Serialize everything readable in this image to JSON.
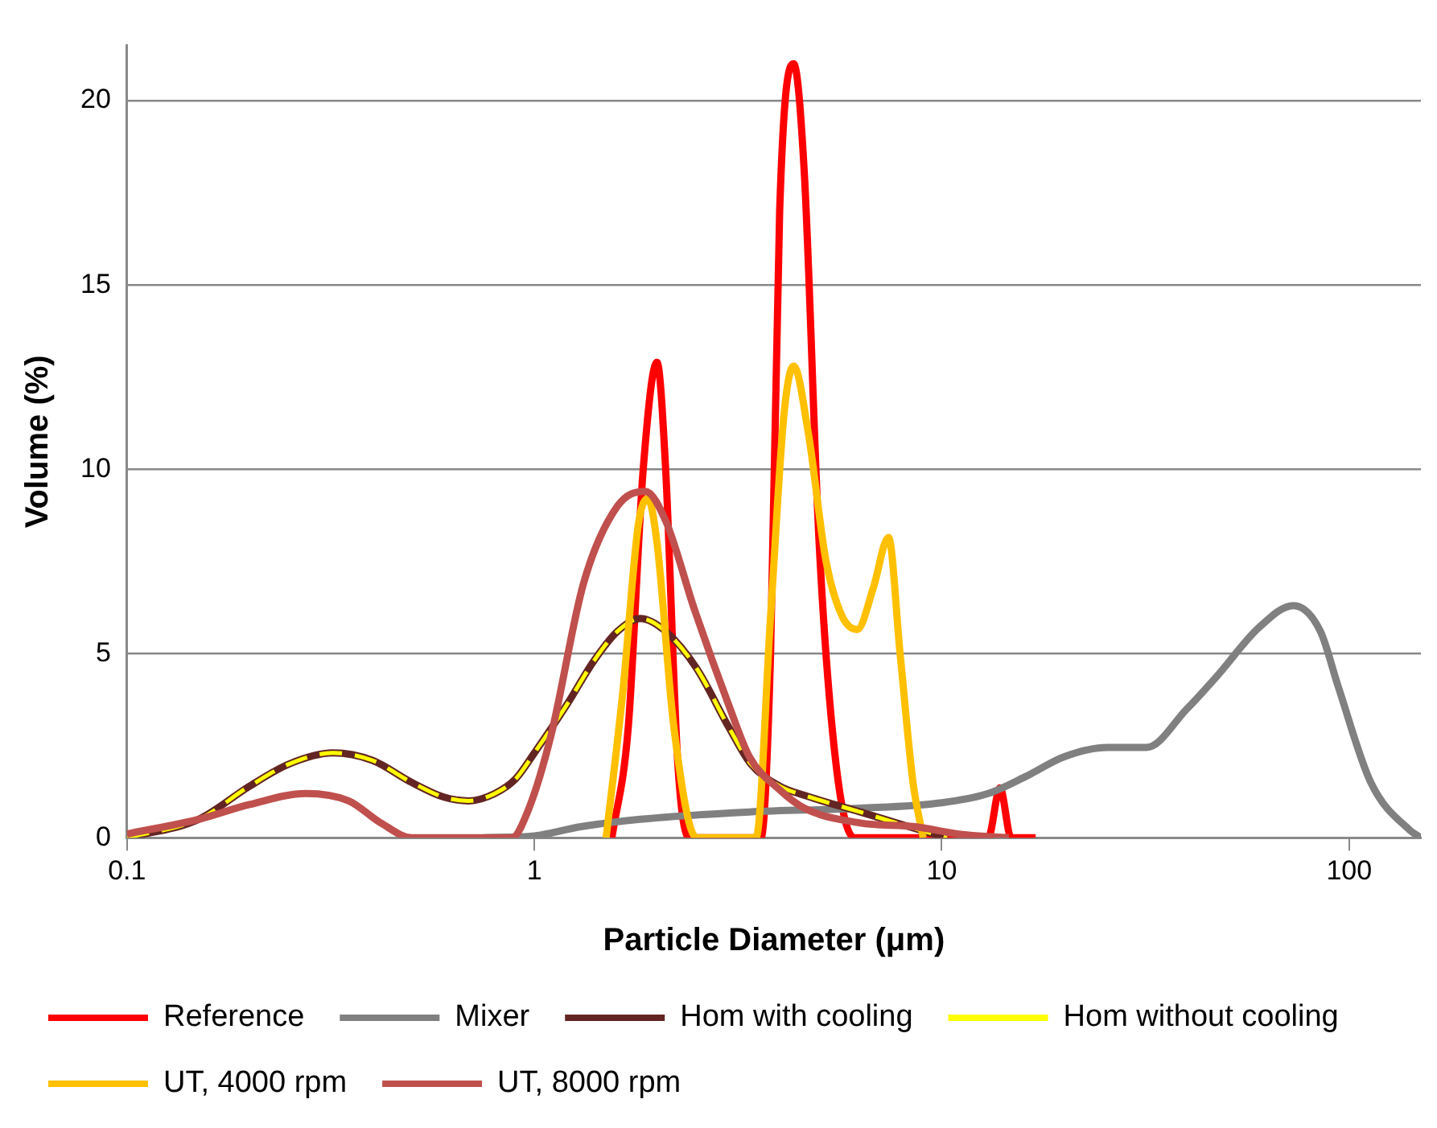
{
  "chart_data": {
    "type": "line",
    "xlabel": "Particle Diameter (μm)",
    "ylabel": "Volume (%)",
    "log": "x",
    "xlim": [
      0.1,
      150
    ],
    "xticks": [
      0.1,
      1,
      10,
      100
    ],
    "ylim": [
      0,
      21.5
    ],
    "yticks": [
      0,
      5,
      10,
      15,
      20
    ],
    "grid": "y",
    "legend": "bottom",
    "marker": "none",
    "series": [
      {
        "name": "Reference",
        "color": "#ff0000",
        "x": [
          1.55,
          1.7,
          1.85,
          2.0,
          2.1,
          2.25,
          2.4,
          3.6,
          3.8,
          4.0,
          4.33,
          4.6,
          5.0,
          5.5,
          6.1,
          13.0,
          13.9,
          14.8,
          17
        ],
        "values": [
          0,
          3,
          10,
          12.9,
          10,
          2,
          0,
          0,
          5,
          17,
          21,
          18,
          8,
          2,
          0,
          0,
          1.35,
          0,
          0
        ]
      },
      {
        "name": "Mixer",
        "color": "#808080",
        "x": [
          0.75,
          1,
          1.3,
          1.82,
          3.37,
          6.3,
          10,
          13,
          16,
          20,
          25.5,
          31.8,
          40,
          47.5,
          60,
          73,
          85,
          94,
          113,
          141,
          150
        ],
        "values": [
          0,
          0.05,
          0.3,
          0.5,
          0.7,
          0.8,
          0.95,
          1.2,
          1.65,
          2.2,
          2.45,
          2.45,
          3.5,
          4.4,
          5.7,
          6.3,
          5.6,
          4.1,
          1.5,
          0.2,
          0
        ]
      },
      {
        "name": "Hom with cooling",
        "color": "#632523",
        "x": [
          0.1,
          0.15,
          0.2,
          0.25,
          0.32,
          0.4,
          0.5,
          0.6,
          0.69,
          0.8,
          0.9,
          1.0,
          1.2,
          1.4,
          1.6,
          1.82,
          2.1,
          2.5,
          3.0,
          3.4,
          4.0,
          4.6,
          6.3,
          8.6,
          10.3
        ],
        "values": [
          0,
          0.5,
          1.4,
          2.0,
          2.3,
          2.1,
          1.5,
          1.1,
          1.0,
          1.2,
          1.6,
          2.3,
          3.6,
          4.8,
          5.6,
          5.95,
          5.6,
          4.6,
          3.0,
          2.0,
          1.4,
          1.15,
          0.7,
          0.25,
          0
        ]
      },
      {
        "name": "Hom without cooling",
        "color": "#ffff00",
        "line_style": "dashed",
        "x": [
          0.1,
          0.15,
          0.2,
          0.25,
          0.32,
          0.4,
          0.5,
          0.6,
          0.69,
          0.8,
          0.9,
          1.0,
          1.2,
          1.4,
          1.6,
          1.82,
          2.1,
          2.5,
          3.0,
          3.4,
          4.0,
          4.6,
          6.3,
          8.6,
          10.3
        ],
        "values": [
          0,
          0.5,
          1.4,
          2.0,
          2.3,
          2.1,
          1.5,
          1.1,
          1.0,
          1.2,
          1.6,
          2.3,
          3.6,
          4.8,
          5.6,
          5.95,
          5.6,
          4.6,
          3.0,
          2.0,
          1.4,
          1.15,
          0.7,
          0.25,
          0
        ]
      },
      {
        "name": "UT, 4000 rpm",
        "color": "#ffc000",
        "x": [
          1.5,
          1.65,
          1.8,
          1.9,
          2.0,
          2.2,
          2.5,
          3.5,
          3.8,
          4.1,
          4.33,
          4.7,
          5.2,
          5.7,
          6.2,
          6.8,
          7.4,
          7.9,
          8.5,
          9.0
        ],
        "values": [
          0,
          4,
          8.5,
          9.2,
          8,
          3,
          0,
          0,
          6,
          11.5,
          12.8,
          11,
          7.5,
          6,
          5.65,
          6.8,
          8.15,
          5,
          1.5,
          0
        ]
      },
      {
        "name": "UT, 8000 rpm",
        "color": "#c0504d",
        "x": [
          0.1,
          0.15,
          0.2,
          0.275,
          0.35,
          0.42,
          0.5,
          0.88,
          0.97,
          1.1,
          1.32,
          1.6,
          1.87,
          2.1,
          2.47,
          3.0,
          3.37,
          4.0,
          4.6,
          6.3,
          8.6,
          11,
          14.6
        ],
        "values": [
          0.1,
          0.5,
          0.9,
          1.2,
          1.0,
          0.4,
          0,
          0,
          0.8,
          2.8,
          6.9,
          9.0,
          9.4,
          8.6,
          6.2,
          3.6,
          2.2,
          1.3,
          0.8,
          0.4,
          0.3,
          0.1,
          0
        ]
      }
    ]
  }
}
